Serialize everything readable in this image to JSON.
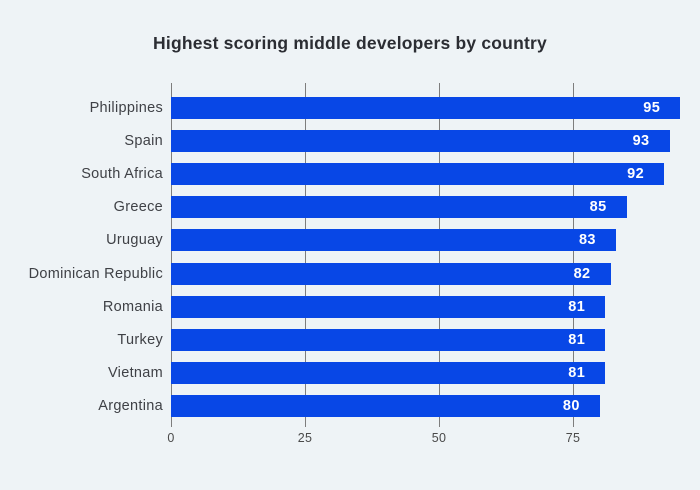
{
  "chart_data": {
    "type": "bar",
    "orientation": "horizontal",
    "title": "Highest scoring middle developers by country",
    "categories": [
      "Philippines",
      "Spain",
      "South Africa",
      "Greece",
      "Uruguay",
      "Dominican Republic",
      "Romania",
      "Turkey",
      "Vietnam",
      "Argentina"
    ],
    "values": [
      95,
      93,
      92,
      85,
      83,
      82,
      81,
      81,
      81,
      80
    ],
    "x_ticks": [
      0,
      25,
      50,
      75
    ],
    "xlim": [
      0,
      100
    ],
    "xlabel": "",
    "ylabel": "",
    "grid": "vertical",
    "legend": "none",
    "value_labels": "inside-end",
    "colors": {
      "background": "#eef3f6",
      "bar": "#0847e6",
      "bar_value_text": "#ffffff",
      "title_text": "#2b2d33",
      "category_text": "#3f4146",
      "tick_text": "#4a4a4a",
      "gridline": "#7d7d7d"
    }
  }
}
